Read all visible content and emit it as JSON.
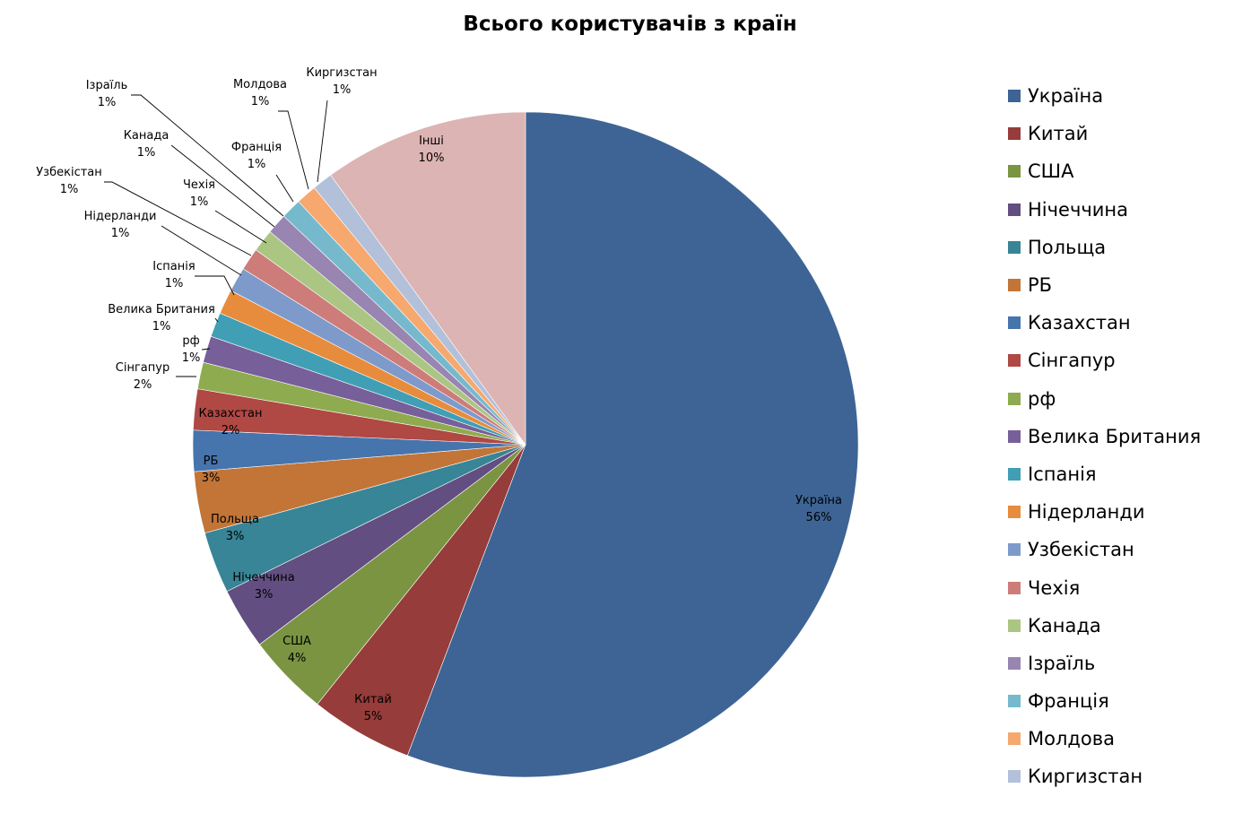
{
  "chart_data": {
    "type": "pie",
    "title": "Всього користувачів з країн",
    "legend_position": "right",
    "slices": [
      {
        "name": "Україна",
        "value": 56,
        "label": "56%",
        "color": "#3d6494"
      },
      {
        "name": "Китай",
        "value": 5,
        "label": "5%",
        "color": "#963c3a"
      },
      {
        "name": "США",
        "value": 4,
        "label": "4%",
        "color": "#7a9442"
      },
      {
        "name": "Нічеччина",
        "value": 3,
        "label": "3%",
        "color": "#624e81"
      },
      {
        "name": "Польща",
        "value": 3,
        "label": "3%",
        "color": "#378596"
      },
      {
        "name": "РБ",
        "value": 3,
        "label": "3%",
        "color": "#c27537"
      },
      {
        "name": "Казахстан",
        "value": 2,
        "label": "2%",
        "color": "#4674ad"
      },
      {
        "name": "Сінгапур",
        "value": 2,
        "label": "2%",
        "color": "#b04844"
      },
      {
        "name": "рф",
        "value": 1.3,
        "label": "1%",
        "color": "#8eab4f"
      },
      {
        "name": "Велика Британия",
        "value": 1.3,
        "label": "1%",
        "color": "#775f99"
      },
      {
        "name": "Іспанія",
        "value": 1.2,
        "label": "1%",
        "color": "#409fb4"
      },
      {
        "name": "Нідерланди",
        "value": 1.2,
        "label": "1%",
        "color": "#e78c3c"
      },
      {
        "name": "Узбекістан",
        "value": 1.2,
        "label": "1%",
        "color": "#7e9acb"
      },
      {
        "name": "Чехія",
        "value": 1.1,
        "label": "1%",
        "color": "#cd7c7a"
      },
      {
        "name": "Канада",
        "value": 1.1,
        "label": "1%",
        "color": "#abc682"
      },
      {
        "name": "Ізраїль",
        "value": 1,
        "label": "1%",
        "color": "#9985b1"
      },
      {
        "name": "Франція",
        "value": 1,
        "label": "1%",
        "color": "#76b9cd"
      },
      {
        "name": "Молдова",
        "value": 1,
        "label": "1%",
        "color": "#f6a86f"
      },
      {
        "name": "Киргизстан",
        "value": 1,
        "label": "1%",
        "color": "#b2c0da"
      },
      {
        "name": "Інші",
        "value": 10,
        "label": "10%",
        "color": "#dcb4b3"
      }
    ],
    "legend": [
      "Україна",
      "Китай",
      "США",
      "Нічеччина",
      "Польща",
      "РБ",
      "Казахстан",
      "Сінгапур",
      "рф",
      "Велика Британия",
      "Іспанія",
      "Нідерланди",
      "Узбекістан",
      "Чехія",
      "Канада",
      "Ізраїль",
      "Франція",
      "Молдова",
      "Киргизстан"
    ]
  }
}
